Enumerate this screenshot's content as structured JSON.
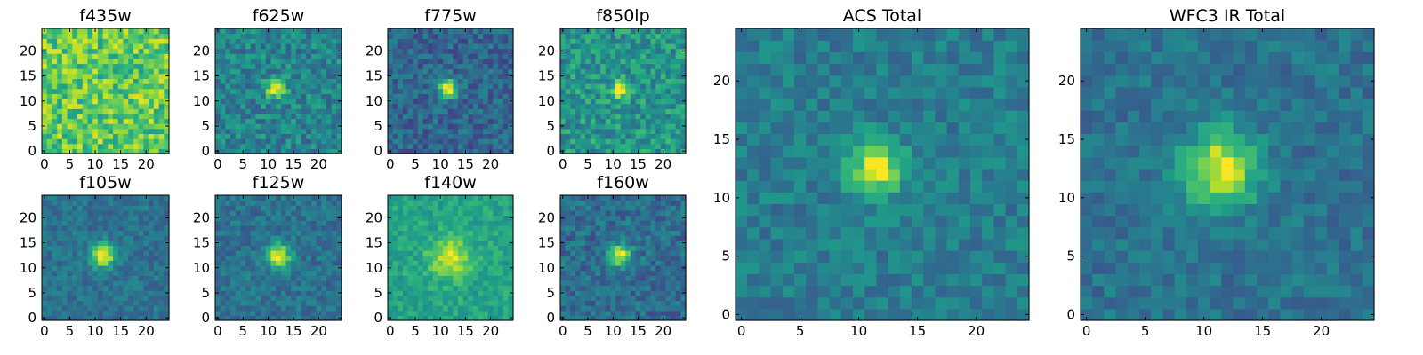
{
  "colormap": "viridis",
  "colormap_stops": [
    "#440154",
    "#482878",
    "#3e4989",
    "#31688e",
    "#26828e",
    "#1f9e89",
    "#35b779",
    "#6ece58",
    "#b5de2b",
    "#fde725"
  ],
  "chart_data": [
    {
      "type": "heatmap",
      "title": "f435w",
      "grid_size": 25,
      "xticks": [
        "0",
        "5",
        "10",
        "15",
        "20"
      ],
      "yticks": [
        "0",
        "5",
        "10",
        "15",
        "20"
      ],
      "xlim": [
        -0.5,
        24.5
      ],
      "ylim": [
        -0.5,
        24.5
      ],
      "peak": [
        12,
        12
      ],
      "peak_sigma": 3.0,
      "peak_amp": 0.0,
      "bg_mean": 0.75,
      "noise": 0.2,
      "seed": 11
    },
    {
      "type": "heatmap",
      "title": "f625w",
      "grid_size": 25,
      "xticks": [
        "0",
        "5",
        "10",
        "15",
        "20"
      ],
      "yticks": [
        "0",
        "5",
        "10",
        "15",
        "20"
      ],
      "xlim": [
        -0.5,
        24.5
      ],
      "ylim": [
        -0.5,
        24.5
      ],
      "peak": [
        11.5,
        12.5
      ],
      "peak_sigma": 1.4,
      "peak_amp": 0.55,
      "bg_mean": 0.45,
      "noise": 0.16,
      "seed": 23
    },
    {
      "type": "heatmap",
      "title": "f775w",
      "grid_size": 25,
      "xticks": [
        "0",
        "5",
        "10",
        "15",
        "20"
      ],
      "yticks": [
        "0",
        "5",
        "10",
        "15",
        "20"
      ],
      "xlim": [
        -0.5,
        24.5
      ],
      "ylim": [
        -0.5,
        24.5
      ],
      "peak": [
        11.5,
        12.5
      ],
      "peak_sigma": 1.3,
      "peak_amp": 0.7,
      "bg_mean": 0.33,
      "noise": 0.14,
      "seed": 37
    },
    {
      "type": "heatmap",
      "title": "f850lp",
      "grid_size": 25,
      "xticks": [
        "0",
        "5",
        "10",
        "15",
        "20"
      ],
      "yticks": [
        "0",
        "5",
        "10",
        "15",
        "20"
      ],
      "xlim": [
        -0.5,
        24.5
      ],
      "ylim": [
        -0.5,
        24.5
      ],
      "peak": [
        11.5,
        12.5
      ],
      "peak_sigma": 1.3,
      "peak_amp": 0.45,
      "bg_mean": 0.52,
      "noise": 0.17,
      "seed": 41
    },
    {
      "type": "heatmap",
      "title": "f105w",
      "grid_size": 25,
      "xticks": [
        "0",
        "5",
        "10",
        "15",
        "20"
      ],
      "yticks": [
        "0",
        "5",
        "10",
        "15",
        "20"
      ],
      "xlim": [
        -0.5,
        24.5
      ],
      "ylim": [
        -0.5,
        24.5
      ],
      "peak": [
        11.5,
        12.5
      ],
      "peak_sigma": 1.6,
      "peak_amp": 0.65,
      "bg_mean": 0.38,
      "noise": 0.1,
      "seed": 53
    },
    {
      "type": "heatmap",
      "title": "f125w",
      "grid_size": 25,
      "xticks": [
        "0",
        "5",
        "10",
        "15",
        "20"
      ],
      "yticks": [
        "0",
        "5",
        "10",
        "15",
        "20"
      ],
      "xlim": [
        -0.5,
        24.5
      ],
      "ylim": [
        -0.5,
        24.5
      ],
      "peak": [
        12,
        12.5
      ],
      "peak_sigma": 1.7,
      "peak_amp": 0.6,
      "bg_mean": 0.38,
      "noise": 0.11,
      "seed": 67
    },
    {
      "type": "heatmap",
      "title": "f140w",
      "grid_size": 25,
      "xticks": [
        "0",
        "5",
        "10",
        "15",
        "20"
      ],
      "yticks": [
        "0",
        "5",
        "10",
        "15",
        "20"
      ],
      "xlim": [
        -0.5,
        24.5
      ],
      "ylim": [
        -0.5,
        24.5
      ],
      "peak": [
        12,
        12
      ],
      "peak_sigma": 2.8,
      "peak_amp": 0.35,
      "bg_mean": 0.58,
      "noise": 0.1,
      "seed": 79
    },
    {
      "type": "heatmap",
      "title": "f160w",
      "grid_size": 25,
      "xticks": [
        "0",
        "5",
        "10",
        "15",
        "20"
      ],
      "yticks": [
        "0",
        "5",
        "10",
        "15",
        "20"
      ],
      "xlim": [
        -0.5,
        24.5
      ],
      "ylim": [
        -0.5,
        24.5
      ],
      "peak": [
        11.5,
        12.5
      ],
      "peak_sigma": 1.6,
      "peak_amp": 0.6,
      "bg_mean": 0.36,
      "noise": 0.13,
      "seed": 83
    },
    {
      "type": "heatmap",
      "title": "ACS Total",
      "grid_size": 25,
      "xticks": [
        "0",
        "5",
        "10",
        "15",
        "20"
      ],
      "yticks": [
        "0",
        "5",
        "10",
        "15",
        "20"
      ],
      "xlim": [
        -0.5,
        24.5
      ],
      "ylim": [
        -0.5,
        24.5
      ],
      "peak": [
        11.5,
        12.5
      ],
      "peak_sigma": 1.6,
      "peak_amp": 0.55,
      "bg_mean": 0.42,
      "noise": 0.11,
      "seed": 97
    },
    {
      "type": "heatmap",
      "title": "WFC3 IR Total",
      "grid_size": 25,
      "xticks": [
        "0",
        "5",
        "10",
        "15",
        "20"
      ],
      "yticks": [
        "0",
        "5",
        "10",
        "15",
        "20"
      ],
      "xlim": [
        -0.5,
        24.5
      ],
      "ylim": [
        -0.5,
        24.5
      ],
      "peak": [
        11.5,
        12.5
      ],
      "peak_sigma": 2.2,
      "peak_amp": 0.6,
      "bg_mean": 0.38,
      "noise": 0.1,
      "seed": 101
    }
  ]
}
